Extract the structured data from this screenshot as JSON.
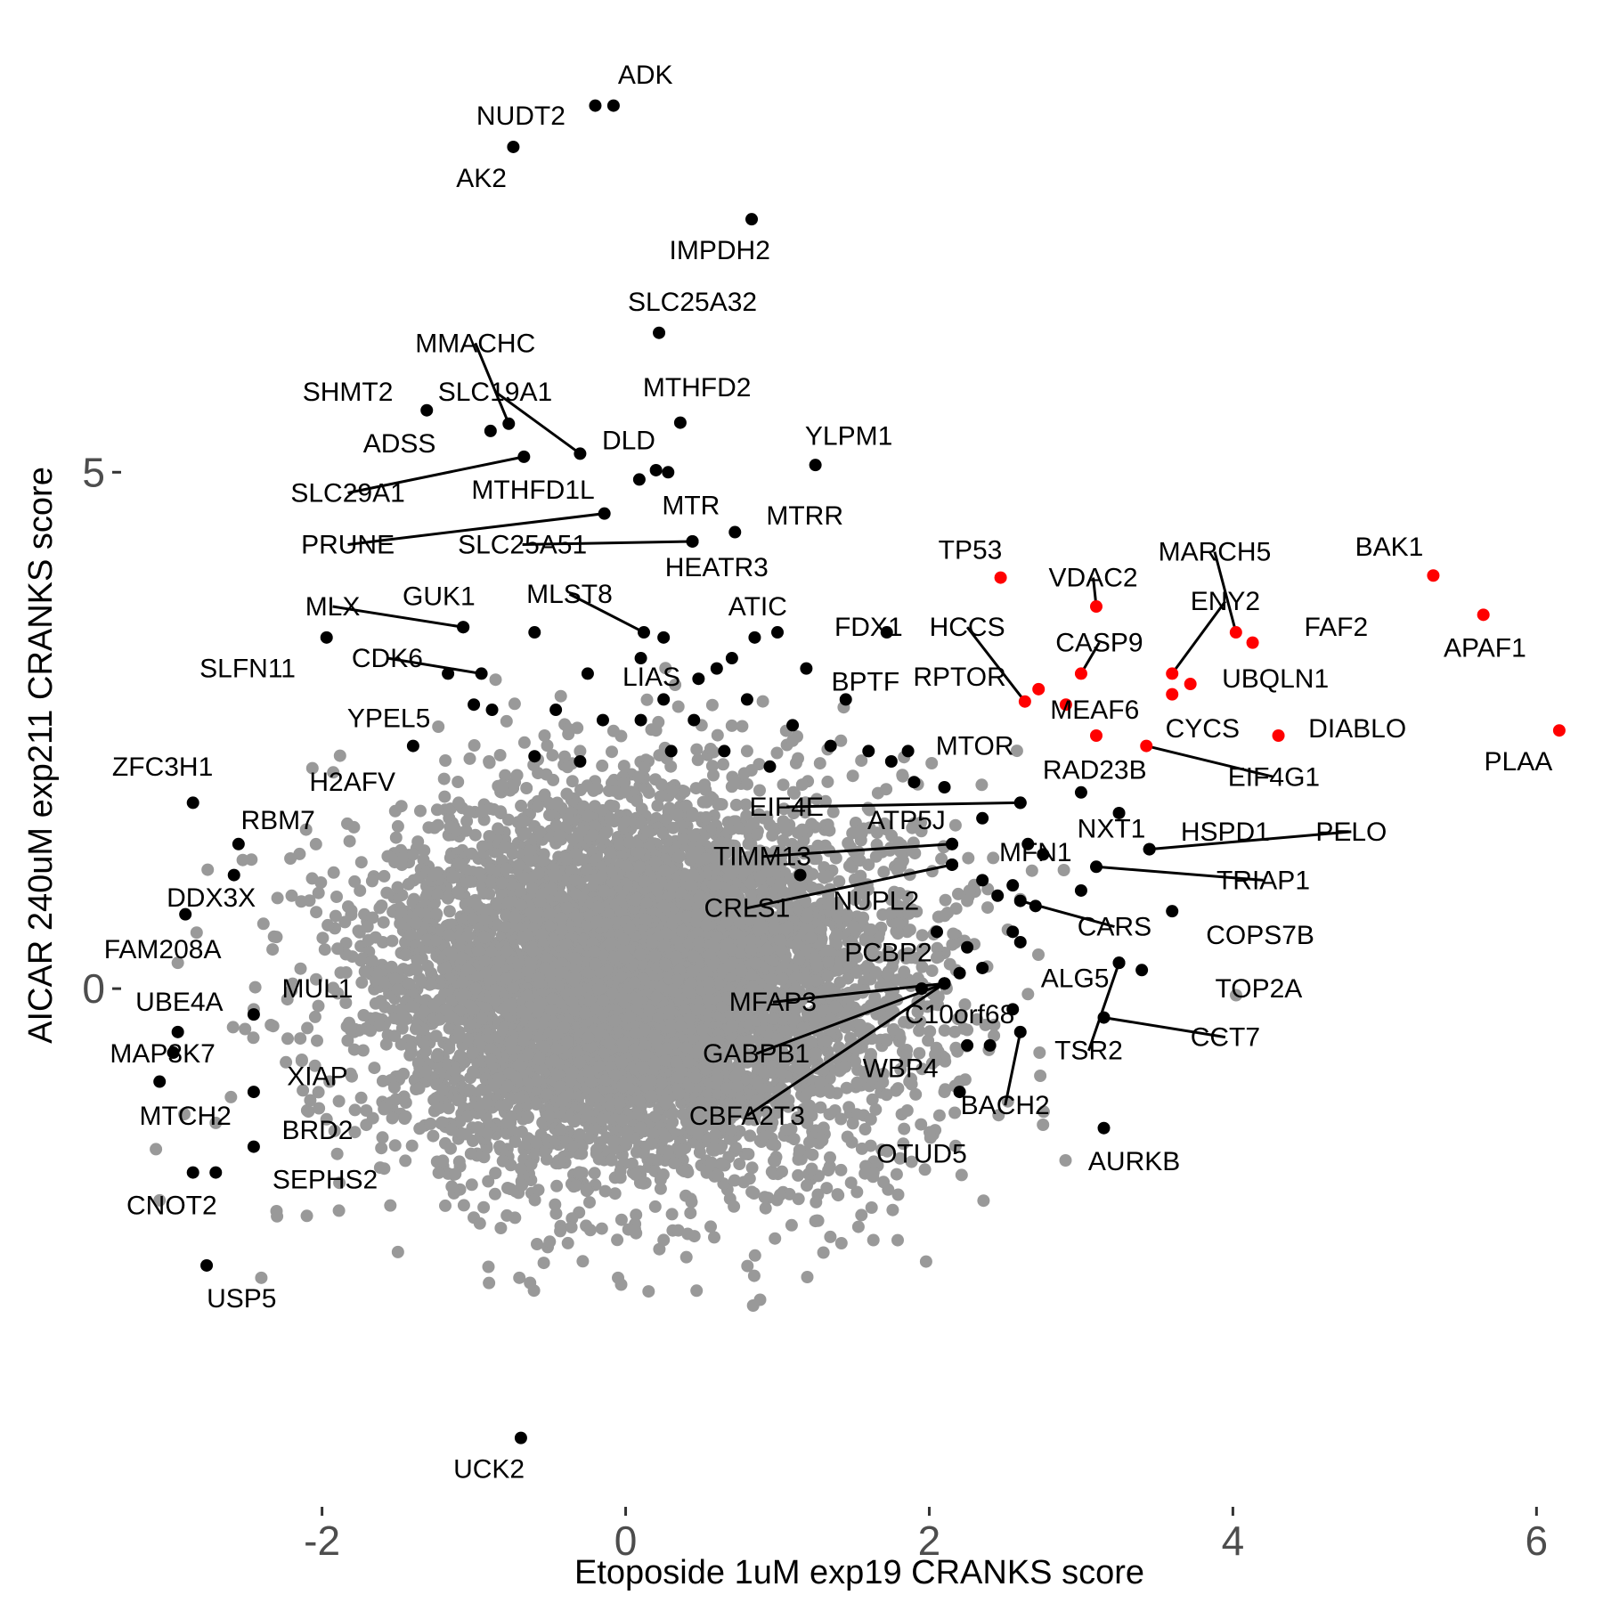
{
  "chart_data": {
    "type": "scatter",
    "title": "",
    "xlabel": "Etoposide 1uM exp19 CRANKS score",
    "ylabel": "AICAR 240uM exp211 CRANKS score",
    "xlim": [
      -3.3,
      6.35
    ],
    "ylim": [
      -5.0,
      9.4
    ],
    "x_ticks": [
      -2,
      0,
      2,
      4,
      6
    ],
    "y_ticks": [
      0,
      5
    ],
    "grid": false,
    "legend": "none",
    "colors": {
      "background": "#ffffff",
      "gray": "#999999",
      "black": "#000000",
      "red": "#ff0000"
    },
    "background_cloud": {
      "n": 7000,
      "seed": 7,
      "center": [
        0.1,
        0.05
      ],
      "sd": [
        0.85,
        0.9
      ]
    },
    "gray_points": [
      [
        -3.07,
        -2.05
      ],
      [
        -2.95,
        0.25
      ],
      [
        -2.7,
        -1.3
      ],
      [
        -2.4,
        -2.8
      ],
      [
        -2.3,
        0.5
      ],
      [
        -1.9,
        -1.6
      ],
      [
        -1.55,
        -2.1
      ],
      [
        -1.4,
        1.3
      ],
      [
        -1.5,
        -2.55
      ],
      [
        -0.9,
        -2.85
      ],
      [
        -0.7,
        -2.8
      ],
      [
        -0.5,
        -2.45
      ],
      [
        0.4,
        -2.6
      ],
      [
        1.4,
        -2.0
      ],
      [
        2.1,
        -1.0
      ],
      [
        1.9,
        1.6
      ],
      [
        2.25,
        -0.4
      ],
      [
        2.25,
        0.85
      ],
      [
        1.1,
        2.4
      ],
      [
        0.8,
        2.3
      ],
      [
        0.5,
        2.55
      ],
      [
        0.2,
        2.5
      ],
      [
        -0.3,
        2.3
      ],
      [
        -0.9,
        2.2
      ],
      [
        -2.2,
        0.9
      ],
      [
        -2.6,
        -1.05
      ],
      [
        -1.7,
        0.6
      ],
      [
        -2.1,
        -2.2
      ],
      [
        -0.05,
        -2.8
      ],
      [
        1.6,
        1.2
      ],
      [
        2.05,
        0.3
      ],
      [
        -1.1,
        1.8
      ],
      [
        -2.45,
        -0.2
      ],
      [
        -1.95,
        -0.9
      ],
      [
        2.2,
        -0.9
      ],
      [
        1.25,
        -2.25
      ]
    ],
    "genes": [
      {
        "name": "ADK",
        "x": -0.08,
        "y": 8.55,
        "color": "black",
        "label_x": 0.13,
        "label_y": 8.85
      },
      {
        "name": "NUDT2",
        "x": -0.2,
        "y": 8.55,
        "color": "black",
        "label_x": -0.69,
        "label_y": 8.45
      },
      {
        "name": "AK2",
        "x": -0.74,
        "y": 8.15,
        "color": "black",
        "label_x": -0.95,
        "label_y": 7.85
      },
      {
        "name": "IMPDH2",
        "x": 0.83,
        "y": 7.45,
        "color": "black",
        "label_x": 0.62,
        "label_y": 7.15
      },
      {
        "name": "SLC25A32",
        "x": 0.22,
        "y": 6.35,
        "color": "black",
        "label_x": 0.44,
        "label_y": 6.65
      },
      {
        "name": "MMACHC",
        "x": -0.77,
        "y": 5.47,
        "color": "black",
        "label_x": -0.99,
        "label_y": 6.25,
        "line": true
      },
      {
        "name": "SHMT2",
        "x": -1.31,
        "y": 5.6,
        "color": "black",
        "label_x": -1.83,
        "label_y": 5.78
      },
      {
        "name": "SLC19A1",
        "x": -0.3,
        "y": 5.18,
        "color": "black",
        "label_x": -0.86,
        "label_y": 5.78,
        "line": true
      },
      {
        "name": "MTHFD2",
        "x": 0.36,
        "y": 5.48,
        "color": "black",
        "label_x": 0.47,
        "label_y": 5.82
      },
      {
        "name": "ADSS",
        "x": -0.89,
        "y": 5.4,
        "color": "black",
        "label_x": -1.49,
        "label_y": 5.28
      },
      {
        "name": "DLD",
        "x": 0.09,
        "y": 4.93,
        "color": "black",
        "label_x": 0.02,
        "label_y": 5.31
      },
      {
        "name": "YLPM1",
        "x": 1.25,
        "y": 5.07,
        "color": "black",
        "label_x": 1.47,
        "label_y": 5.35
      },
      {
        "name": "SLC29A1",
        "x": -0.67,
        "y": 5.15,
        "color": "black",
        "label_x": -1.83,
        "label_y": 4.8,
        "line": true
      },
      {
        "name": "MTHFD1L",
        "x": 0.2,
        "y": 5.02,
        "color": "black",
        "label_x": -0.61,
        "label_y": 4.83
      },
      {
        "name": "MTR",
        "x": 0.28,
        "y": 5.0,
        "color": "black",
        "label_x": 0.43,
        "label_y": 4.68
      },
      {
        "name": "MTRR",
        "x": 0.72,
        "y": 4.42,
        "color": "black",
        "label_x": 1.18,
        "label_y": 4.58
      },
      {
        "name": "PRUNE",
        "x": -0.14,
        "y": 4.6,
        "color": "black",
        "label_x": -1.83,
        "label_y": 4.3,
        "line": true
      },
      {
        "name": "SLC25A51",
        "x": 0.44,
        "y": 4.33,
        "color": "black",
        "label_x": -0.68,
        "label_y": 4.3,
        "line": true
      },
      {
        "name": "HEATR3",
        "x": 0.44,
        "y": 4.33,
        "color": "black",
        "label_x": 0.6,
        "label_y": 4.08
      },
      {
        "name": "TP53",
        "x": 2.47,
        "y": 3.98,
        "color": "red",
        "label_x": 2.27,
        "label_y": 4.25
      },
      {
        "name": "VDAC2",
        "x": 3.1,
        "y": 3.7,
        "color": "red",
        "label_x": 3.08,
        "label_y": 3.98,
        "line": true
      },
      {
        "name": "MARCH5",
        "x": 4.02,
        "y": 3.45,
        "color": "red",
        "label_x": 3.88,
        "label_y": 4.23,
        "line": true
      },
      {
        "name": "BAK1",
        "x": 5.32,
        "y": 4.0,
        "color": "red",
        "label_x": 5.03,
        "label_y": 4.28
      },
      {
        "name": "ENY2",
        "x": 3.6,
        "y": 3.05,
        "color": "red",
        "label_x": 3.95,
        "label_y": 3.75,
        "line": true
      },
      {
        "name": "FAF2",
        "x": 4.13,
        "y": 3.35,
        "color": "red",
        "label_x": 4.68,
        "label_y": 3.5
      },
      {
        "name": "APAF1",
        "x": 5.65,
        "y": 3.62,
        "color": "red",
        "label_x": 5.66,
        "label_y": 3.3
      },
      {
        "name": "MLX",
        "x": -1.07,
        "y": 3.5,
        "color": "black",
        "label_x": -1.93,
        "label_y": 3.7,
        "line": true
      },
      {
        "name": "GUK1",
        "x": -1.07,
        "y": 3.5,
        "color": "black",
        "label_x": -1.23,
        "label_y": 3.8
      },
      {
        "name": "MLST8",
        "x": 0.12,
        "y": 3.45,
        "color": "black",
        "label_x": -0.37,
        "label_y": 3.82,
        "line": true
      },
      {
        "name": "ATIC",
        "x": 0.85,
        "y": 3.4,
        "color": "black",
        "label_x": 0.87,
        "label_y": 3.7
      },
      {
        "name": "FDX1",
        "x": 1.72,
        "y": 3.45,
        "color": "black",
        "label_x": 1.6,
        "label_y": 3.5
      },
      {
        "name": "HCCS",
        "x": 2.63,
        "y": 2.78,
        "color": "red",
        "label_x": 2.25,
        "label_y": 3.5,
        "line": true
      },
      {
        "name": "CASP9",
        "x": 3.0,
        "y": 3.05,
        "color": "red",
        "label_x": 3.12,
        "label_y": 3.35,
        "line": true
      },
      {
        "name": "SLFN11",
        "x": -1.97,
        "y": 3.4,
        "color": "black",
        "label_x": -2.49,
        "label_y": 3.1
      },
      {
        "name": "CDK6",
        "x": -0.95,
        "y": 3.05,
        "color": "black",
        "label_x": -1.57,
        "label_y": 3.2,
        "line": true
      },
      {
        "name": "LIAS",
        "x": 0.48,
        "y": 3.0,
        "color": "black",
        "label_x": 0.17,
        "label_y": 3.02
      },
      {
        "name": "BPTF",
        "x": 1.19,
        "y": 3.1,
        "color": "black",
        "label_x": 1.58,
        "label_y": 2.97
      },
      {
        "name": "RPTOR",
        "x": 2.72,
        "y": 2.9,
        "color": "red",
        "label_x": 2.2,
        "label_y": 3.02
      },
      {
        "name": "UBQLN1",
        "x": 3.72,
        "y": 2.95,
        "color": "red",
        "label_x": 4.28,
        "label_y": 3.0
      },
      {
        "name": "MEAF6",
        "x": 2.9,
        "y": 2.75,
        "color": "red",
        "label_x": 3.09,
        "label_y": 2.7
      },
      {
        "name": "YPEL5",
        "x": -1.0,
        "y": 2.75,
        "color": "black",
        "label_x": -1.56,
        "label_y": 2.62
      },
      {
        "name": "CYCS",
        "x": 3.6,
        "y": 2.85,
        "color": "red",
        "label_x": 3.8,
        "label_y": 2.52
      },
      {
        "name": "DIABLO",
        "x": 4.3,
        "y": 2.45,
        "color": "red",
        "label_x": 4.82,
        "label_y": 2.52
      },
      {
        "name": "MTOR",
        "x": 1.86,
        "y": 2.3,
        "color": "black",
        "label_x": 2.3,
        "label_y": 2.35
      },
      {
        "name": "PLAA",
        "x": 6.15,
        "y": 2.5,
        "color": "red",
        "label_x": 5.88,
        "label_y": 2.2
      },
      {
        "name": "RAD23B",
        "x": 3.1,
        "y": 2.45,
        "color": "red",
        "label_x": 3.09,
        "label_y": 2.12
      },
      {
        "name": "EIF4G1",
        "x": 3.43,
        "y": 2.35,
        "color": "red",
        "label_x": 4.27,
        "label_y": 2.05,
        "line": true
      },
      {
        "name": "ZFC3H1",
        "x": -2.85,
        "y": 1.8,
        "color": "black",
        "label_x": -3.05,
        "label_y": 2.15
      },
      {
        "name": "H2AFV",
        "x": -1.4,
        "y": 2.35,
        "color": "black",
        "label_x": -1.8,
        "label_y": 2.0
      },
      {
        "name": "EIF4E",
        "x": 2.6,
        "y": 1.8,
        "color": "black",
        "label_x": 1.06,
        "label_y": 1.76,
        "line": true
      },
      {
        "name": "ATP5J",
        "x": 2.6,
        "y": 1.8,
        "color": "black",
        "label_x": 1.85,
        "label_y": 1.63
      },
      {
        "name": "RBM7",
        "x": -2.55,
        "y": 1.4,
        "color": "black",
        "label_x": -2.29,
        "label_y": 1.63
      },
      {
        "name": "NXT1",
        "x": 3.0,
        "y": 1.9,
        "color": "black",
        "label_x": 3.2,
        "label_y": 1.55
      },
      {
        "name": "HSPD1",
        "x": 3.45,
        "y": 1.35,
        "color": "black",
        "label_x": 3.95,
        "label_y": 1.52
      },
      {
        "name": "PELO",
        "x": 3.45,
        "y": 1.35,
        "color": "black",
        "label_x": 4.78,
        "label_y": 1.52,
        "line": true
      },
      {
        "name": "TIMM13",
        "x": 2.15,
        "y": 1.4,
        "color": "black",
        "label_x": 0.9,
        "label_y": 1.28,
        "line": true
      },
      {
        "name": "MFN1",
        "x": 2.15,
        "y": 1.4,
        "color": "black",
        "label_x": 2.7,
        "label_y": 1.32
      },
      {
        "name": "TRIAP1",
        "x": 3.1,
        "y": 1.18,
        "color": "black",
        "label_x": 4.2,
        "label_y": 1.05,
        "line": true
      },
      {
        "name": "DDX3X",
        "x": -2.58,
        "y": 1.1,
        "color": "black",
        "label_x": -2.73,
        "label_y": 0.88
      },
      {
        "name": "NUPL2",
        "x": 2.15,
        "y": 1.2,
        "color": "black",
        "label_x": 1.65,
        "label_y": 0.85
      },
      {
        "name": "CRLS1",
        "x": 2.15,
        "y": 1.2,
        "color": "black",
        "label_x": 0.8,
        "label_y": 0.78,
        "line": true
      },
      {
        "name": "CARS",
        "x": 2.6,
        "y": 0.85,
        "color": "black",
        "label_x": 3.22,
        "label_y": 0.6,
        "line": true
      },
      {
        "name": "COPS7B",
        "x": 3.6,
        "y": 0.75,
        "color": "black",
        "label_x": 4.18,
        "label_y": 0.52
      },
      {
        "name": "FAM208A",
        "x": -2.9,
        "y": 0.72,
        "color": "black",
        "label_x": -3.05,
        "label_y": 0.38
      },
      {
        "name": "PCBP2",
        "x": 2.25,
        "y": 0.4,
        "color": "black",
        "label_x": 1.73,
        "label_y": 0.35
      },
      {
        "name": "ALG5",
        "x": 3.25,
        "y": 0.25,
        "color": "black",
        "label_x": 2.96,
        "label_y": 0.1
      },
      {
        "name": "TOP2A",
        "x": 3.4,
        "y": 0.18,
        "color": "black",
        "label_x": 4.17,
        "label_y": 0.0
      },
      {
        "name": "MUL1",
        "x": -2.45,
        "y": -0.25,
        "color": "black",
        "label_x": -2.03,
        "label_y": 0.0
      },
      {
        "name": "UBE4A",
        "x": -2.95,
        "y": -0.42,
        "color": "black",
        "label_x": -2.94,
        "label_y": -0.13
      },
      {
        "name": "MFAP3",
        "x": 2.1,
        "y": 0.05,
        "color": "black",
        "label_x": 0.97,
        "label_y": -0.13,
        "line": true
      },
      {
        "name": "C10orf68",
        "x": 2.1,
        "y": 0.05,
        "color": "black",
        "label_x": 2.2,
        "label_y": -0.25
      },
      {
        "name": "CCT7",
        "x": 3.15,
        "y": -0.28,
        "color": "black",
        "label_x": 3.95,
        "label_y": -0.47,
        "line": true
      },
      {
        "name": "MAP3K7",
        "x": -2.98,
        "y": -0.62,
        "color": "black",
        "label_x": -3.05,
        "label_y": -0.63
      },
      {
        "name": "TSR2",
        "x": 3.25,
        "y": 0.25,
        "color": "black",
        "label_x": 3.05,
        "label_y": -0.6,
        "line": true
      },
      {
        "name": "GABPB1",
        "x": 2.1,
        "y": 0.05,
        "color": "black",
        "label_x": 0.86,
        "label_y": -0.63,
        "line": true
      },
      {
        "name": "XIAP",
        "x": -2.45,
        "y": -1.0,
        "color": "black",
        "label_x": -2.03,
        "label_y": -0.85
      },
      {
        "name": "MTCH2",
        "x": -3.07,
        "y": -0.9,
        "color": "black",
        "label_x": -2.9,
        "label_y": -1.23
      },
      {
        "name": "WBP4",
        "x": 2.1,
        "y": 0.05,
        "color": "black",
        "label_x": 1.81,
        "label_y": -0.77
      },
      {
        "name": "BACH2",
        "x": 2.6,
        "y": -0.42,
        "color": "black",
        "label_x": 2.5,
        "label_y": -1.13,
        "line": true
      },
      {
        "name": "CBFA2T3",
        "x": 2.1,
        "y": 0.05,
        "color": "black",
        "label_x": 0.8,
        "label_y": -1.23,
        "line": true
      },
      {
        "name": "BRD2",
        "x": -2.45,
        "y": -1.53,
        "color": "black",
        "label_x": -2.03,
        "label_y": -1.37
      },
      {
        "name": "AURKB",
        "x": 3.15,
        "y": -1.35,
        "color": "black",
        "label_x": 3.35,
        "label_y": -1.67
      },
      {
        "name": "OTUD5",
        "x": 2.2,
        "y": -1.0,
        "color": "black",
        "label_x": 1.95,
        "label_y": -1.6
      },
      {
        "name": "SEPHS2",
        "x": -2.7,
        "y": -1.78,
        "color": "black",
        "label_x": -1.98,
        "label_y": -1.85
      },
      {
        "name": "CNOT2",
        "x": -2.85,
        "y": -1.78,
        "color": "black",
        "label_x": -2.99,
        "label_y": -2.1
      },
      {
        "name": "USP5",
        "x": -2.76,
        "y": -2.68,
        "color": "black",
        "label_x": -2.53,
        "label_y": -3.0
      },
      {
        "name": "UCK2",
        "x": -0.69,
        "y": -4.35,
        "color": "black",
        "label_x": -0.9,
        "label_y": -4.65
      }
    ],
    "extra_black_points": [
      [
        -1.17,
        3.05
      ],
      [
        -0.88,
        2.7
      ],
      [
        -0.6,
        2.25
      ],
      [
        -0.3,
        2.2
      ],
      [
        0.1,
        2.6
      ],
      [
        0.45,
        2.6
      ],
      [
        0.65,
        2.3
      ],
      [
        0.95,
        2.15
      ],
      [
        1.35,
        2.35
      ],
      [
        1.6,
        2.3
      ],
      [
        1.75,
        2.2
      ],
      [
        0.3,
        2.3
      ],
      [
        -0.15,
        2.6
      ],
      [
        -0.46,
        2.7
      ],
      [
        0.8,
        2.8
      ],
      [
        1.1,
        2.55
      ],
      [
        1.45,
        2.8
      ],
      [
        1.9,
        2.0
      ],
      [
        2.1,
        1.95
      ],
      [
        2.75,
        1.3
      ],
      [
        2.35,
        1.65
      ],
      [
        2.45,
        0.9
      ],
      [
        2.6,
        0.45
      ],
      [
        2.35,
        0.2
      ],
      [
        2.55,
        -0.2
      ],
      [
        2.4,
        -0.55
      ],
      [
        2.25,
        -0.55
      ],
      [
        2.55,
        1.0
      ],
      [
        2.7,
        0.8
      ],
      [
        1.15,
        1.1
      ],
      [
        0.1,
        3.2
      ],
      [
        -0.6,
        3.45
      ],
      [
        -0.25,
        3.05
      ],
      [
        0.25,
        2.8
      ],
      [
        0.6,
        3.1
      ],
      [
        0.25,
        3.4
      ],
      [
        0.7,
        3.2
      ],
      [
        1.0,
        3.45
      ],
      [
        2.35,
        1.05
      ],
      [
        3.25,
        1.7
      ],
      [
        2.65,
        1.4
      ],
      [
        2.05,
        0.55
      ],
      [
        1.95,
        0.0
      ],
      [
        2.2,
        0.15
      ],
      [
        2.55,
        0.55
      ],
      [
        3.0,
        0.95
      ]
    ]
  }
}
